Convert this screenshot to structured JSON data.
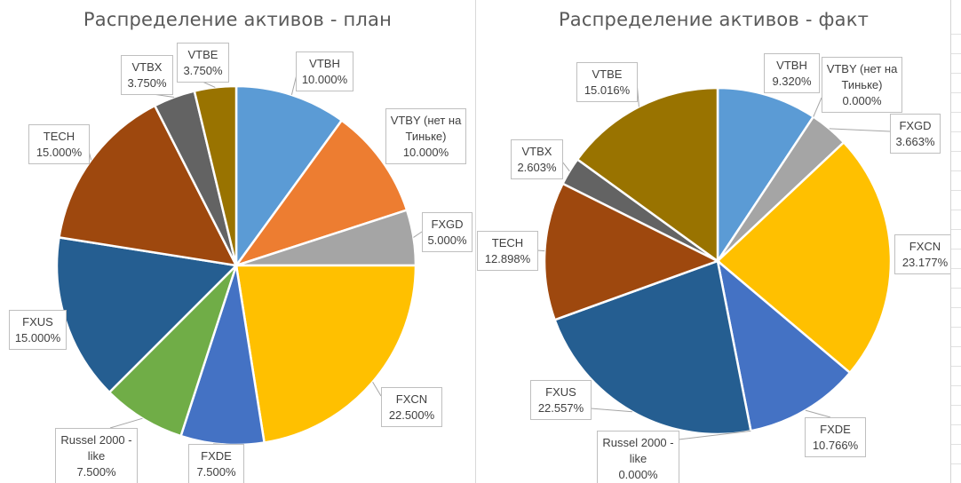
{
  "chart_data": [
    {
      "type": "pie",
      "title": "Распределение активов - план",
      "slices": [
        {
          "name": "VTBH",
          "lines": [
            "VTBH",
            "10.000%"
          ],
          "value": 10.0,
          "color": "#5B9BD5"
        },
        {
          "name": "VTBY (нет на Тиньке)",
          "lines": [
            "VTBY (нет на",
            "Тиньке)",
            "10.000%"
          ],
          "value": 10.0,
          "color": "#ED7D31"
        },
        {
          "name": "FXGD",
          "lines": [
            "FXGD",
            "5.000%"
          ],
          "value": 5.0,
          "color": "#A5A5A5"
        },
        {
          "name": "FXCN",
          "lines": [
            "FXCN",
            "22.500%"
          ],
          "value": 22.5,
          "color": "#FFC000"
        },
        {
          "name": "FXDE",
          "lines": [
            "FXDE",
            "7.500%"
          ],
          "value": 7.5,
          "color": "#4472C4"
        },
        {
          "name": "Russel 2000 - like",
          "lines": [
            "Russel 2000 -",
            "like",
            "7.500%"
          ],
          "value": 7.5,
          "color": "#70AD47"
        },
        {
          "name": "FXUS",
          "lines": [
            "FXUS",
            "15.000%"
          ],
          "value": 15.0,
          "color": "#255E91"
        },
        {
          "name": "TECH",
          "lines": [
            "TECH",
            "15.000%"
          ],
          "value": 15.0,
          "color": "#9E480E"
        },
        {
          "name": "VTBX",
          "lines": [
            "VTBX",
            "3.750%"
          ],
          "value": 3.75,
          "color": "#636363"
        },
        {
          "name": "VTBE",
          "lines": [
            "VTBE",
            "3.750%"
          ],
          "value": 3.75,
          "color": "#997300"
        }
      ]
    },
    {
      "type": "pie",
      "title": "Распределение активов - факт",
      "slices": [
        {
          "name": "VTBH",
          "lines": [
            "VTBH",
            "9.320%"
          ],
          "value": 9.32,
          "color": "#5B9BD5"
        },
        {
          "name": "VTBY (нет на Тиньке)",
          "lines": [
            "VTBY (нет на",
            "Тиньке)",
            "0.000%"
          ],
          "value": 0.0,
          "color": "#ED7D31"
        },
        {
          "name": "FXGD",
          "lines": [
            "FXGD",
            "3.663%"
          ],
          "value": 3.663,
          "color": "#A5A5A5"
        },
        {
          "name": "FXCN",
          "lines": [
            "FXCN",
            "23.177%"
          ],
          "value": 23.177,
          "color": "#FFC000"
        },
        {
          "name": "FXDE",
          "lines": [
            "FXDE",
            "10.766%"
          ],
          "value": 10.766,
          "color": "#4472C4"
        },
        {
          "name": "Russel 2000 - like",
          "lines": [
            "Russel 2000 -",
            "like",
            "0.000%"
          ],
          "value": 0.0,
          "color": "#70AD47"
        },
        {
          "name": "FXUS",
          "lines": [
            "FXUS",
            "22.557%"
          ],
          "value": 22.557,
          "color": "#255E91"
        },
        {
          "name": "TECH",
          "lines": [
            "TECH",
            "12.898%"
          ],
          "value": 12.898,
          "color": "#9E480E"
        },
        {
          "name": "VTBX",
          "lines": [
            "VTBX",
            "2.603%"
          ],
          "value": 2.603,
          "color": "#636363"
        },
        {
          "name": "VTBE",
          "lines": [
            "VTBE",
            "15.016%"
          ],
          "value": 15.016,
          "color": "#997300"
        }
      ]
    }
  ]
}
